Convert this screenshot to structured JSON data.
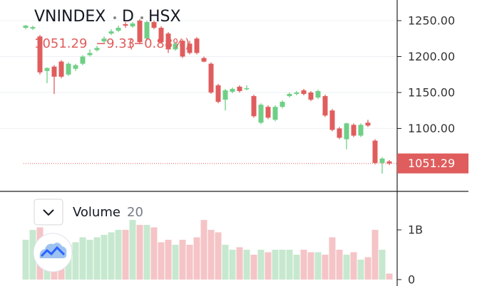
{
  "chart_data": [
    {
      "type": "candlestick",
      "symbol": "VNINDEX",
      "interval": "D",
      "exchange": "HSX",
      "status_labels": [
        "1051.29",
        "−9.33",
        "(−0.88%)"
      ],
      "last_label": "1051.29",
      "up_color": "#6fcf86",
      "down_color": "#e05d5d",
      "ylim": [
        1013.4,
        1278.7
      ],
      "yticks": [
        {
          "value": 1100,
          "label": "1100.00"
        },
        {
          "value": 1150,
          "label": "1150.00"
        },
        {
          "value": 1200,
          "label": "1200.00"
        },
        {
          "value": 1250,
          "label": "1250.00"
        }
      ],
      "grid": true,
      "open": [
        1240,
        1239,
        1228,
        1180,
        1186,
        1193,
        1175,
        1183,
        1190,
        1202,
        1209,
        1221,
        1232,
        1236,
        1245,
        1242,
        1250,
        1225,
        1248,
        1240,
        1232,
        1210,
        1222,
        1218,
        1225,
        1198,
        1190,
        1160,
        1140,
        1151,
        1158,
        1155,
        1145,
        1108,
        1130,
        1112,
        1130,
        1145,
        1148,
        1153,
        1150,
        1143,
        1145,
        1125,
        1100,
        1085,
        1105,
        1090,
        1108,
        1083,
        1052,
        1054
      ],
      "high": [
        1244,
        1243,
        1230,
        1185,
        1188,
        1195,
        1192,
        1190,
        1202,
        1210,
        1215,
        1228,
        1238,
        1243,
        1248,
        1248,
        1252,
        1250,
        1250,
        1242,
        1234,
        1220,
        1224,
        1222,
        1227,
        1200,
        1192,
        1162,
        1155,
        1157,
        1160,
        1160,
        1147,
        1135,
        1132,
        1132,
        1139,
        1150,
        1152,
        1155,
        1152,
        1154,
        1147,
        1127,
        1102,
        1108,
        1107,
        1107,
        1112,
        1085,
        1060,
        1056
      ],
      "low": [
        1238,
        1237,
        1175,
        1163,
        1148,
        1170,
        1173,
        1180,
        1188,
        1200,
        1207,
        1219,
        1230,
        1234,
        1240,
        1240,
        1218,
        1222,
        1238,
        1218,
        1205,
        1208,
        1198,
        1203,
        1203,
        1192,
        1148,
        1135,
        1125,
        1149,
        1150,
        1153,
        1115,
        1106,
        1113,
        1110,
        1128,
        1143,
        1146,
        1146,
        1138,
        1141,
        1116,
        1096,
        1085,
        1071,
        1088,
        1088,
        1102,
        1050,
        1037,
        1049
      ],
      "close": [
        1243,
        1241,
        1178,
        1184,
        1172,
        1172,
        1190,
        1188,
        1200,
        1205,
        1212,
        1225,
        1235,
        1240,
        1243,
        1246,
        1220,
        1248,
        1240,
        1220,
        1210,
        1218,
        1200,
        1205,
        1205,
        1193,
        1150,
        1137,
        1153,
        1155,
        1152,
        1156,
        1117,
        1133,
        1115,
        1130,
        1137,
        1148,
        1150,
        1148,
        1140,
        1152,
        1118,
        1098,
        1087,
        1107,
        1090,
        1105,
        1104,
        1052,
        1058,
        1051.29
      ]
    },
    {
      "type": "bar",
      "title": "Volume",
      "length": 20,
      "up_color": "#c6e8cf",
      "down_color": "#f5c4c7",
      "ylim": [
        -130000000,
        1760000000
      ],
      "yticks": [
        0,
        {
          "value": 1000000000,
          "label": "1B"
        }
      ],
      "values": [
        800000000,
        1000000000,
        1050000000,
        800000000,
        800000000,
        750000000,
        700000000,
        750000000,
        850000000,
        800000000,
        850000000,
        900000000,
        950000000,
        1000000000,
        1000000000,
        1200000000,
        1100000000,
        1100000000,
        1050000000,
        750000000,
        800000000,
        700000000,
        800000000,
        700000000,
        850000000,
        1200000000,
        1000000000,
        950000000,
        700000000,
        600000000,
        650000000,
        600000000,
        500000000,
        600000000,
        550000000,
        600000000,
        600000000,
        600000000,
        500000000,
        600000000,
        550000000,
        550000000,
        500000000,
        850000000,
        600000000,
        500000000,
        550000000,
        400000000,
        450000000,
        1000000000,
        600000000,
        120000000
      ]
    }
  ]
}
